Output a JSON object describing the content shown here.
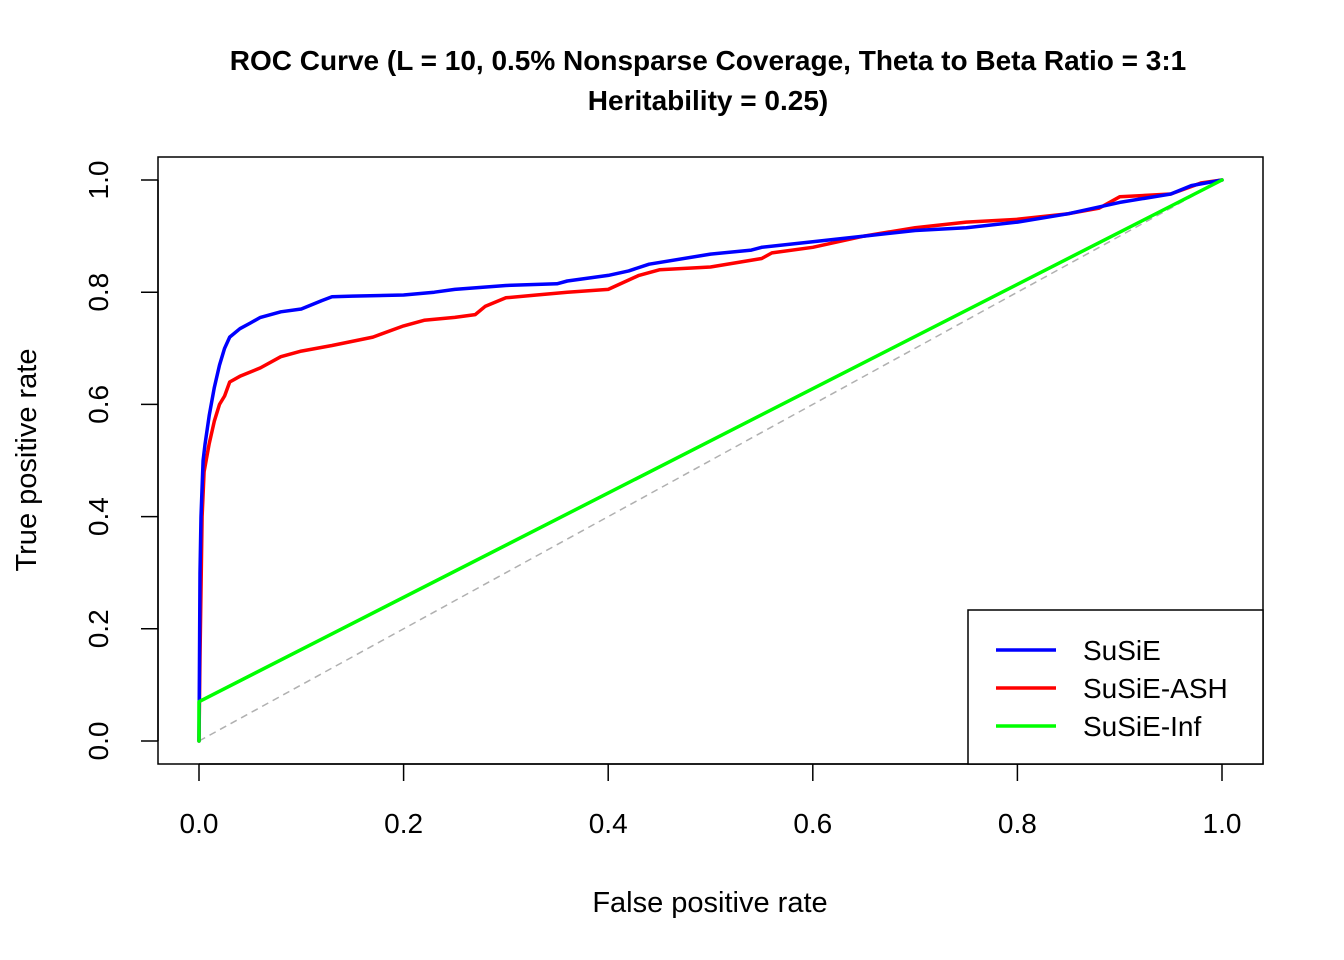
{
  "chart_data": {
    "type": "line",
    "title_line1": "ROC Curve (L = 10, 0.5% Nonsparse Coverage, Theta to Beta Ratio = 3:1",
    "title_line2": "Heritability = 0.25)",
    "xlabel": "False positive rate",
    "ylabel": "True positive rate",
    "xlim": [
      0,
      1
    ],
    "ylim": [
      0,
      1
    ],
    "x_ticks": [
      "0.0",
      "0.2",
      "0.4",
      "0.6",
      "0.8",
      "1.0"
    ],
    "y_ticks": [
      "0.0",
      "0.2",
      "0.4",
      "0.6",
      "0.8",
      "1.0"
    ],
    "grid": false,
    "legend_position": "bottom-right",
    "reference_line": {
      "x": [
        0,
        1
      ],
      "y": [
        0,
        1
      ],
      "color": "#b0b0b0",
      "style": "dashed"
    },
    "series": [
      {
        "name": "SuSiE",
        "color": "#0000ff",
        "x": [
          0,
          0.001,
          0.002,
          0.004,
          0.006,
          0.01,
          0.015,
          0.02,
          0.025,
          0.03,
          0.04,
          0.05,
          0.06,
          0.08,
          0.1,
          0.12,
          0.13,
          0.15,
          0.2,
          0.23,
          0.25,
          0.3,
          0.35,
          0.36,
          0.4,
          0.42,
          0.44,
          0.5,
          0.54,
          0.55,
          0.6,
          0.65,
          0.7,
          0.75,
          0.8,
          0.85,
          0.9,
          0.95,
          0.97,
          1.0
        ],
        "y": [
          0,
          0.3,
          0.4,
          0.5,
          0.53,
          0.58,
          0.63,
          0.67,
          0.7,
          0.72,
          0.735,
          0.745,
          0.755,
          0.765,
          0.77,
          0.785,
          0.792,
          0.793,
          0.795,
          0.8,
          0.805,
          0.812,
          0.815,
          0.82,
          0.83,
          0.838,
          0.85,
          0.868,
          0.875,
          0.88,
          0.89,
          0.9,
          0.91,
          0.915,
          0.925,
          0.94,
          0.96,
          0.975,
          0.99,
          1.0
        ]
      },
      {
        "name": "SuSiE-ASH",
        "color": "#ff0000",
        "x": [
          0,
          0.001,
          0.003,
          0.005,
          0.01,
          0.015,
          0.02,
          0.025,
          0.03,
          0.04,
          0.06,
          0.08,
          0.1,
          0.13,
          0.17,
          0.2,
          0.22,
          0.25,
          0.27,
          0.28,
          0.3,
          0.33,
          0.36,
          0.4,
          0.43,
          0.45,
          0.5,
          0.55,
          0.56,
          0.6,
          0.65,
          0.7,
          0.75,
          0.8,
          0.85,
          0.88,
          0.9,
          0.95,
          0.98,
          1.0
        ],
        "y": [
          0,
          0.15,
          0.4,
          0.48,
          0.53,
          0.57,
          0.6,
          0.615,
          0.64,
          0.65,
          0.665,
          0.685,
          0.695,
          0.705,
          0.72,
          0.74,
          0.75,
          0.755,
          0.76,
          0.775,
          0.79,
          0.795,
          0.8,
          0.805,
          0.83,
          0.84,
          0.845,
          0.86,
          0.87,
          0.88,
          0.9,
          0.915,
          0.925,
          0.93,
          0.94,
          0.95,
          0.97,
          0.975,
          0.995,
          1.0
        ]
      },
      {
        "name": "SuSiE-Inf",
        "color": "#00ff00",
        "x": [
          0,
          0,
          1
        ],
        "y": [
          0,
          0.07,
          1.0
        ]
      }
    ]
  }
}
